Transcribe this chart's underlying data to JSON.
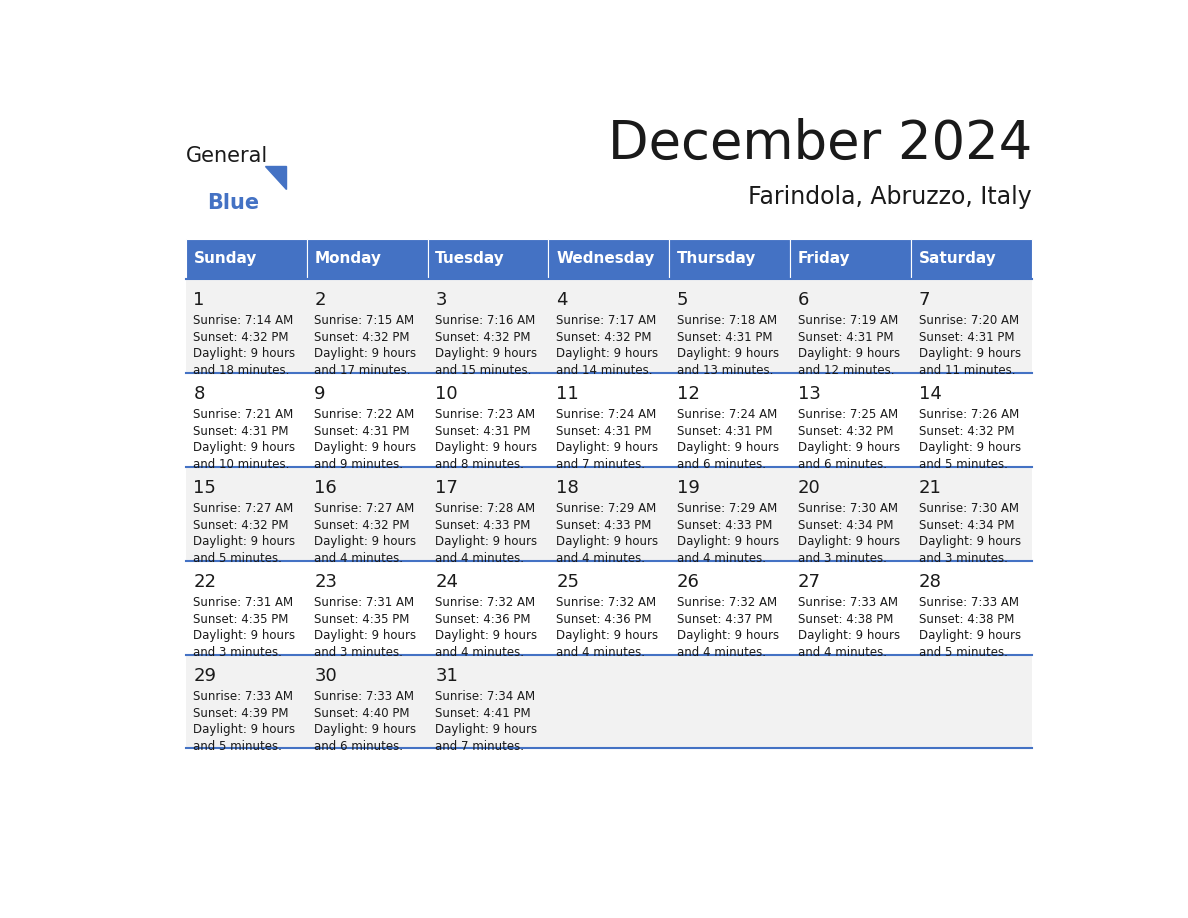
{
  "title": "December 2024",
  "subtitle": "Farindola, Abruzzo, Italy",
  "header_bg_color": "#4472C4",
  "header_text_color": "#FFFFFF",
  "row_bg_odd": "#F2F2F2",
  "row_bg_even": "#FFFFFF",
  "border_color": "#4472C4",
  "text_color": "#1a1a1a",
  "days_of_week": [
    "Sunday",
    "Monday",
    "Tuesday",
    "Wednesday",
    "Thursday",
    "Friday",
    "Saturday"
  ],
  "calendar_data": [
    [
      {
        "day": 1,
        "sunrise": "7:14 AM",
        "sunset": "4:32 PM",
        "daylight_line1": "Daylight: 9 hours",
        "daylight_line2": "and 18 minutes."
      },
      {
        "day": 2,
        "sunrise": "7:15 AM",
        "sunset": "4:32 PM",
        "daylight_line1": "Daylight: 9 hours",
        "daylight_line2": "and 17 minutes."
      },
      {
        "day": 3,
        "sunrise": "7:16 AM",
        "sunset": "4:32 PM",
        "daylight_line1": "Daylight: 9 hours",
        "daylight_line2": "and 15 minutes."
      },
      {
        "day": 4,
        "sunrise": "7:17 AM",
        "sunset": "4:32 PM",
        "daylight_line1": "Daylight: 9 hours",
        "daylight_line2": "and 14 minutes."
      },
      {
        "day": 5,
        "sunrise": "7:18 AM",
        "sunset": "4:31 PM",
        "daylight_line1": "Daylight: 9 hours",
        "daylight_line2": "and 13 minutes."
      },
      {
        "day": 6,
        "sunrise": "7:19 AM",
        "sunset": "4:31 PM",
        "daylight_line1": "Daylight: 9 hours",
        "daylight_line2": "and 12 minutes."
      },
      {
        "day": 7,
        "sunrise": "7:20 AM",
        "sunset": "4:31 PM",
        "daylight_line1": "Daylight: 9 hours",
        "daylight_line2": "and 11 minutes."
      }
    ],
    [
      {
        "day": 8,
        "sunrise": "7:21 AM",
        "sunset": "4:31 PM",
        "daylight_line1": "Daylight: 9 hours",
        "daylight_line2": "and 10 minutes."
      },
      {
        "day": 9,
        "sunrise": "7:22 AM",
        "sunset": "4:31 PM",
        "daylight_line1": "Daylight: 9 hours",
        "daylight_line2": "and 9 minutes."
      },
      {
        "day": 10,
        "sunrise": "7:23 AM",
        "sunset": "4:31 PM",
        "daylight_line1": "Daylight: 9 hours",
        "daylight_line2": "and 8 minutes."
      },
      {
        "day": 11,
        "sunrise": "7:24 AM",
        "sunset": "4:31 PM",
        "daylight_line1": "Daylight: 9 hours",
        "daylight_line2": "and 7 minutes."
      },
      {
        "day": 12,
        "sunrise": "7:24 AM",
        "sunset": "4:31 PM",
        "daylight_line1": "Daylight: 9 hours",
        "daylight_line2": "and 6 minutes."
      },
      {
        "day": 13,
        "sunrise": "7:25 AM",
        "sunset": "4:32 PM",
        "daylight_line1": "Daylight: 9 hours",
        "daylight_line2": "and 6 minutes."
      },
      {
        "day": 14,
        "sunrise": "7:26 AM",
        "sunset": "4:32 PM",
        "daylight_line1": "Daylight: 9 hours",
        "daylight_line2": "and 5 minutes."
      }
    ],
    [
      {
        "day": 15,
        "sunrise": "7:27 AM",
        "sunset": "4:32 PM",
        "daylight_line1": "Daylight: 9 hours",
        "daylight_line2": "and 5 minutes."
      },
      {
        "day": 16,
        "sunrise": "7:27 AM",
        "sunset": "4:32 PM",
        "daylight_line1": "Daylight: 9 hours",
        "daylight_line2": "and 4 minutes."
      },
      {
        "day": 17,
        "sunrise": "7:28 AM",
        "sunset": "4:33 PM",
        "daylight_line1": "Daylight: 9 hours",
        "daylight_line2": "and 4 minutes."
      },
      {
        "day": 18,
        "sunrise": "7:29 AM",
        "sunset": "4:33 PM",
        "daylight_line1": "Daylight: 9 hours",
        "daylight_line2": "and 4 minutes."
      },
      {
        "day": 19,
        "sunrise": "7:29 AM",
        "sunset": "4:33 PM",
        "daylight_line1": "Daylight: 9 hours",
        "daylight_line2": "and 4 minutes."
      },
      {
        "day": 20,
        "sunrise": "7:30 AM",
        "sunset": "4:34 PM",
        "daylight_line1": "Daylight: 9 hours",
        "daylight_line2": "and 3 minutes."
      },
      {
        "day": 21,
        "sunrise": "7:30 AM",
        "sunset": "4:34 PM",
        "daylight_line1": "Daylight: 9 hours",
        "daylight_line2": "and 3 minutes."
      }
    ],
    [
      {
        "day": 22,
        "sunrise": "7:31 AM",
        "sunset": "4:35 PM",
        "daylight_line1": "Daylight: 9 hours",
        "daylight_line2": "and 3 minutes."
      },
      {
        "day": 23,
        "sunrise": "7:31 AM",
        "sunset": "4:35 PM",
        "daylight_line1": "Daylight: 9 hours",
        "daylight_line2": "and 3 minutes."
      },
      {
        "day": 24,
        "sunrise": "7:32 AM",
        "sunset": "4:36 PM",
        "daylight_line1": "Daylight: 9 hours",
        "daylight_line2": "and 4 minutes."
      },
      {
        "day": 25,
        "sunrise": "7:32 AM",
        "sunset": "4:36 PM",
        "daylight_line1": "Daylight: 9 hours",
        "daylight_line2": "and 4 minutes."
      },
      {
        "day": 26,
        "sunrise": "7:32 AM",
        "sunset": "4:37 PM",
        "daylight_line1": "Daylight: 9 hours",
        "daylight_line2": "and 4 minutes."
      },
      {
        "day": 27,
        "sunrise": "7:33 AM",
        "sunset": "4:38 PM",
        "daylight_line1": "Daylight: 9 hours",
        "daylight_line2": "and 4 minutes."
      },
      {
        "day": 28,
        "sunrise": "7:33 AM",
        "sunset": "4:38 PM",
        "daylight_line1": "Daylight: 9 hours",
        "daylight_line2": "and 5 minutes."
      }
    ],
    [
      {
        "day": 29,
        "sunrise": "7:33 AM",
        "sunset": "4:39 PM",
        "daylight_line1": "Daylight: 9 hours",
        "daylight_line2": "and 5 minutes."
      },
      {
        "day": 30,
        "sunrise": "7:33 AM",
        "sunset": "4:40 PM",
        "daylight_line1": "Daylight: 9 hours",
        "daylight_line2": "and 6 minutes."
      },
      {
        "day": 31,
        "sunrise": "7:34 AM",
        "sunset": "4:41 PM",
        "daylight_line1": "Daylight: 9 hours",
        "daylight_line2": "and 7 minutes."
      },
      null,
      null,
      null,
      null
    ]
  ],
  "logo_triangle_color": "#4472C4",
  "title_fontsize": 38,
  "subtitle_fontsize": 17,
  "header_fontsize": 11,
  "day_num_fontsize": 13,
  "cell_text_fontsize": 8.5
}
